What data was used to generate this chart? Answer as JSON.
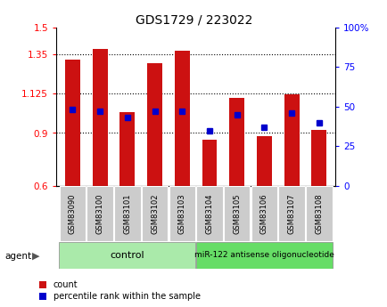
{
  "title": "GDS1729 / 223022",
  "samples": [
    "GSM83090",
    "GSM83100",
    "GSM83101",
    "GSM83102",
    "GSM83103",
    "GSM83104",
    "GSM83105",
    "GSM83106",
    "GSM83107",
    "GSM83108"
  ],
  "red_values": [
    1.32,
    1.38,
    1.02,
    1.3,
    1.37,
    0.86,
    1.1,
    0.88,
    1.12,
    0.92
  ],
  "blue_values": [
    48,
    47,
    43,
    47,
    47,
    35,
    45,
    37,
    46,
    40
  ],
  "ylim_left": [
    0.6,
    1.5
  ],
  "ylim_right": [
    0,
    100
  ],
  "yticks_left": [
    0.6,
    0.9,
    1.125,
    1.35,
    1.5
  ],
  "ytick_labels_left": [
    "0.6",
    "0.9",
    "1.125",
    "1.35",
    "1.5"
  ],
  "yticks_right": [
    0,
    25,
    50,
    75,
    100
  ],
  "ytick_labels_right": [
    "0",
    "25",
    "50",
    "75",
    "100%"
  ],
  "hlines": [
    0.9,
    1.125,
    1.35
  ],
  "ctrl_count": 5,
  "treat_count": 5,
  "control_label": "control",
  "treatment_label": "miR-122 antisense oligonucleotide",
  "agent_label": "agent",
  "legend_count": "count",
  "legend_pct": "percentile rank within the sample",
  "bar_color": "#cc1111",
  "blue_color": "#0000cc",
  "bg_color": "#ffffff",
  "plot_bg": "#ffffff",
  "tick_area_bg": "#cccccc",
  "control_bg": "#aaeaaa",
  "treatment_bg": "#66dd66",
  "bar_bottom": 0.6,
  "bar_width": 0.55
}
